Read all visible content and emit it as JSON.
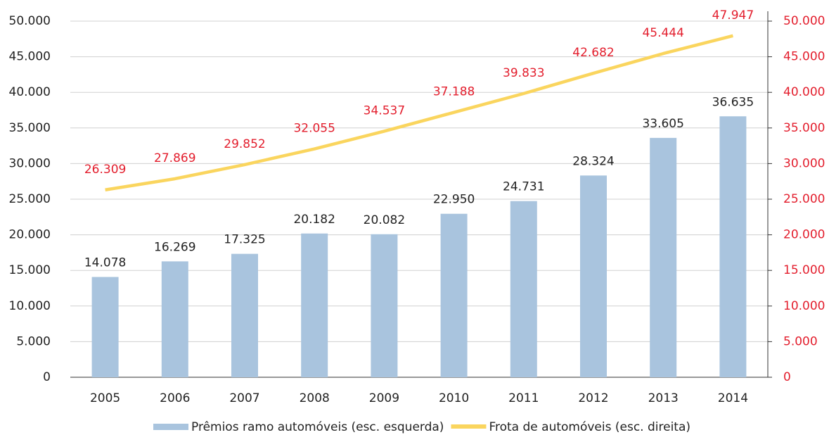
{
  "chart_data": {
    "type": "bar",
    "categories": [
      "2005",
      "2006",
      "2007",
      "2008",
      "2009",
      "2010",
      "2011",
      "2012",
      "2013",
      "2014"
    ],
    "series": [
      {
        "name": "Prêmios ramo automóveis (esc. esquerda)",
        "type": "bar",
        "color": "#a9c4de",
        "values": [
          14078,
          16269,
          17325,
          20182,
          20082,
          22950,
          24731,
          28324,
          33605,
          36635
        ],
        "value_labels": [
          "14.078",
          "16.269",
          "17.325",
          "20.182",
          "20.082",
          "22.950",
          "24.731",
          "28.324",
          "33.605",
          "36.635"
        ]
      },
      {
        "name": "Frota de automóveis (esc. direita)",
        "type": "line",
        "axis": "y2",
        "color": "#fad55e",
        "label_color": "#e31e2d",
        "values": [
          26309,
          27869,
          29852,
          32055,
          34537,
          37188,
          39833,
          42682,
          45444,
          47947
        ],
        "value_labels": [
          "26.309",
          "27.869",
          "29.852",
          "32.055",
          "34.537",
          "37.188",
          "39.833",
          "42.682",
          "45.444",
          "47.947"
        ]
      }
    ],
    "ylim": [
      0,
      50000
    ],
    "yticks": [
      {
        "value": 0,
        "label": "0"
      },
      {
        "value": 5000,
        "label": "5.000"
      },
      {
        "value": 10000,
        "label": "10.000"
      },
      {
        "value": 15000,
        "label": "15.000"
      },
      {
        "value": 20000,
        "label": "20.000"
      },
      {
        "value": 25000,
        "label": "25.000"
      },
      {
        "value": 30000,
        "label": "30.000"
      },
      {
        "value": 35000,
        "label": "35.000"
      },
      {
        "value": 40000,
        "label": "40.000"
      },
      {
        "value": 45000,
        "label": "45.000"
      },
      {
        "value": 50000,
        "label": "50.000"
      }
    ],
    "y2lim": [
      0,
      50000
    ],
    "y2ticks": [
      {
        "value": 0,
        "label": "0"
      },
      {
        "value": 5000,
        "label": "5.000"
      },
      {
        "value": 10000,
        "label": "10.000"
      },
      {
        "value": 15000,
        "label": "15.000"
      },
      {
        "value": 20000,
        "label": "20.000"
      },
      {
        "value": 25000,
        "label": "25.000"
      },
      {
        "value": 30000,
        "label": "30.000"
      },
      {
        "value": 35000,
        "label": "35.000"
      },
      {
        "value": 40000,
        "label": "40.000"
      },
      {
        "value": 45000,
        "label": "45.000"
      },
      {
        "value": 50000,
        "label": "50.000"
      }
    ],
    "y2_color": "#e31e2d",
    "grid": true,
    "legend": "bottom"
  }
}
